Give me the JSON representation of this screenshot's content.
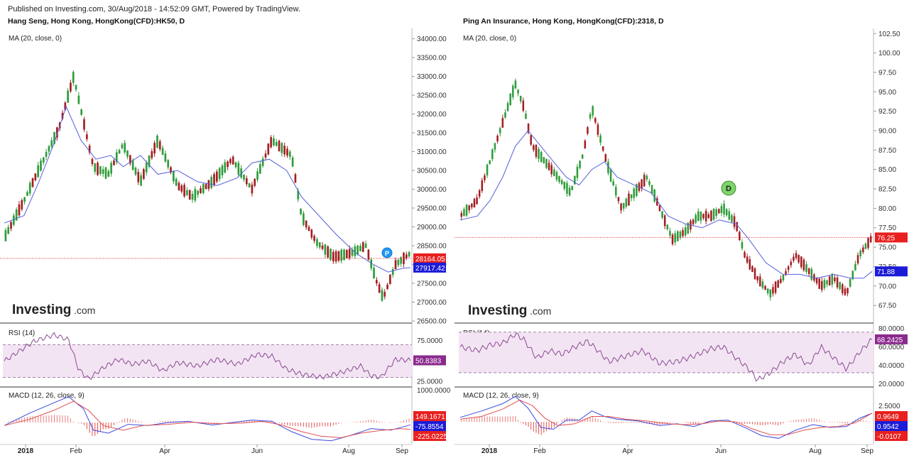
{
  "header": {
    "published": "Published on Investing.com, 30/Aug/2018 - 14:52:09 GMT, Powered by TradingView."
  },
  "colors": {
    "up": "#2e9c3a",
    "down": "#a31e22",
    "ma": "#5560d8",
    "rsi": "#8a4a93",
    "rsi_band": "#f3e4f3",
    "macd": "#3a49e0",
    "signal": "#e05050",
    "hist_pos": "#e87a7a",
    "price_line": "#e22b2b",
    "last_bg": "#e8201f",
    "ma_bg": "#1c1cd8",
    "rsi_bg": "#8b2a8e"
  },
  "chart_data": [
    {
      "type": "candlestick",
      "title": "Hang Seng, Hong Kong, HongKong(CFD):HK50, D",
      "ma_label": "MA (20, close, 0)",
      "x_labels": [
        "2018",
        "Feb",
        "Apr",
        "Jun",
        "Aug",
        "Sep"
      ],
      "y_ticks": [
        "34000.00",
        "33500.00",
        "33000.00",
        "32500.00",
        "32000.00",
        "31500.00",
        "31000.00",
        "30500.00",
        "30000.00",
        "29500.00",
        "29000.00",
        "28500.00",
        "28000.00",
        "27500.00",
        "27000.00",
        "26500.00"
      ],
      "ylim": [
        26500,
        34200
      ],
      "close_path": [
        [
          0,
          28700
        ],
        [
          8,
          29700
        ],
        [
          16,
          30800
        ],
        [
          22,
          31600
        ],
        [
          28,
          33000
        ],
        [
          33,
          31500
        ],
        [
          36,
          30600
        ],
        [
          42,
          30400
        ],
        [
          48,
          31200
        ],
        [
          55,
          30200
        ],
        [
          62,
          31300
        ],
        [
          70,
          30100
        ],
        [
          76,
          29800
        ],
        [
          84,
          30200
        ],
        [
          92,
          30800
        ],
        [
          100,
          30000
        ],
        [
          108,
          31300
        ],
        [
          116,
          30900
        ],
        [
          120,
          29300
        ],
        [
          126,
          28600
        ],
        [
          133,
          28200
        ],
        [
          140,
          28300
        ],
        [
          146,
          28500
        ],
        [
          150,
          27600
        ],
        [
          153,
          27100
        ],
        [
          158,
          28000
        ],
        [
          164,
          28300
        ]
      ],
      "ma_path": [
        [
          0,
          29100
        ],
        [
          8,
          29300
        ],
        [
          14,
          30200
        ],
        [
          20,
          31200
        ],
        [
          25,
          32200
        ],
        [
          31,
          31300
        ],
        [
          37,
          30800
        ],
        [
          43,
          30900
        ],
        [
          48,
          30600
        ],
        [
          55,
          30900
        ],
        [
          62,
          30400
        ],
        [
          70,
          30500
        ],
        [
          78,
          30200
        ],
        [
          86,
          30100
        ],
        [
          94,
          30300
        ],
        [
          100,
          30700
        ],
        [
          107,
          30800
        ],
        [
          114,
          30500
        ],
        [
          120,
          29800
        ],
        [
          127,
          29300
        ],
        [
          134,
          28800
        ],
        [
          142,
          28300
        ],
        [
          149,
          28000
        ],
        [
          155,
          27800
        ],
        [
          161,
          27900
        ],
        [
          164,
          27917
        ]
      ],
      "last_price": "28164.05",
      "last_price_value": 28164.05,
      "ma_value": "27917.42",
      "ma_value_num": 27917.42,
      "marker": {
        "label": "P",
        "x": 158,
        "y": 28300
      },
      "rsi": {
        "label": "RSI (14)",
        "ticks": [
          "75.0000",
          "25.0000"
        ],
        "current": "50.8383",
        "path": [
          [
            0,
            50
          ],
          [
            6,
            62
          ],
          [
            12,
            74
          ],
          [
            20,
            82
          ],
          [
            26,
            76
          ],
          [
            30,
            40
          ],
          [
            34,
            28
          ],
          [
            40,
            42
          ],
          [
            46,
            52
          ],
          [
            52,
            46
          ],
          [
            58,
            50
          ],
          [
            64,
            38
          ],
          [
            70,
            48
          ],
          [
            78,
            44
          ],
          [
            86,
            52
          ],
          [
            94,
            46
          ],
          [
            102,
            58
          ],
          [
            108,
            56
          ],
          [
            114,
            40
          ],
          [
            120,
            34
          ],
          [
            128,
            30
          ],
          [
            136,
            36
          ],
          [
            144,
            44
          ],
          [
            148,
            32
          ],
          [
            152,
            30
          ],
          [
            158,
            52
          ],
          [
            164,
            50.8
          ]
        ]
      },
      "macd": {
        "label": "MACD (12, 26, close, 9)",
        "ticks": [
          "1000.0000"
        ],
        "values": [
          "149.1671",
          "-75.8554",
          "-225.0225"
        ],
        "macd_path": [
          [
            0,
            -100
          ],
          [
            10,
            300
          ],
          [
            20,
            650
          ],
          [
            26,
            850
          ],
          [
            32,
            450
          ],
          [
            36,
            -250
          ],
          [
            42,
            -350
          ],
          [
            50,
            -60
          ],
          [
            58,
            -100
          ],
          [
            66,
            0
          ],
          [
            74,
            40
          ],
          [
            84,
            -80
          ],
          [
            92,
            0
          ],
          [
            100,
            80
          ],
          [
            108,
            40
          ],
          [
            116,
            -300
          ],
          [
            124,
            -550
          ],
          [
            132,
            -600
          ],
          [
            140,
            -420
          ],
          [
            148,
            -200
          ],
          [
            156,
            -250
          ],
          [
            164,
            -76
          ]
        ],
        "signal_path": [
          [
            0,
            -100
          ],
          [
            10,
            100
          ],
          [
            20,
            400
          ],
          [
            28,
            700
          ],
          [
            34,
            400
          ],
          [
            40,
            -100
          ],
          [
            48,
            -250
          ],
          [
            56,
            -100
          ],
          [
            66,
            -60
          ],
          [
            76,
            10
          ],
          [
            86,
            -40
          ],
          [
            96,
            -20
          ],
          [
            104,
            40
          ],
          [
            112,
            -80
          ],
          [
            120,
            -300
          ],
          [
            128,
            -450
          ],
          [
            136,
            -500
          ],
          [
            144,
            -350
          ],
          [
            152,
            -260
          ],
          [
            160,
            -200
          ],
          [
            164,
            -225
          ]
        ]
      }
    },
    {
      "type": "candlestick",
      "title": "Ping An Insurance, Hong Kong, HongKong(CFD):2318, D",
      "ma_label": "MA (20, close, 0)",
      "x_labels": [
        "2018",
        "Feb",
        "Apr",
        "Jun",
        "Aug",
        "Sep"
      ],
      "y_ticks": [
        "102.50",
        "100.00",
        "97.50",
        "95.00",
        "92.50",
        "90.00",
        "87.50",
        "85.00",
        "82.50",
        "80.00",
        "77.50",
        "75.00",
        "72.50",
        "70.00",
        "67.50"
      ],
      "ylim": [
        65.5,
        102.8
      ],
      "close_path": [
        [
          0,
          79
        ],
        [
          8,
          81
        ],
        [
          14,
          86
        ],
        [
          20,
          91
        ],
        [
          26,
          96
        ],
        [
          30,
          93
        ],
        [
          34,
          88
        ],
        [
          40,
          86
        ],
        [
          46,
          84
        ],
        [
          52,
          82
        ],
        [
          58,
          87
        ],
        [
          62,
          93
        ],
        [
          66,
          89
        ],
        [
          70,
          85
        ],
        [
          76,
          80
        ],
        [
          82,
          82
        ],
        [
          88,
          84
        ],
        [
          94,
          80
        ],
        [
          100,
          76
        ],
        [
          106,
          77
        ],
        [
          112,
          79
        ],
        [
          118,
          79
        ],
        [
          124,
          80
        ],
        [
          130,
          78
        ],
        [
          134,
          74
        ],
        [
          140,
          71
        ],
        [
          146,
          69
        ],
        [
          152,
          71
        ],
        [
          158,
          74
        ],
        [
          164,
          72
        ],
        [
          170,
          70
        ],
        [
          176,
          71
        ],
        [
          182,
          69
        ],
        [
          188,
          74
        ],
        [
          194,
          76.25
        ]
      ],
      "ma_path": [
        [
          0,
          78.5
        ],
        [
          8,
          79
        ],
        [
          14,
          81
        ],
        [
          20,
          84
        ],
        [
          26,
          88
        ],
        [
          32,
          90
        ],
        [
          38,
          88
        ],
        [
          44,
          86
        ],
        [
          50,
          84
        ],
        [
          56,
          83
        ],
        [
          62,
          85
        ],
        [
          68,
          86
        ],
        [
          74,
          84
        ],
        [
          82,
          83
        ],
        [
          90,
          82
        ],
        [
          98,
          79
        ],
        [
          106,
          78
        ],
        [
          114,
          77.5
        ],
        [
          122,
          78.5
        ],
        [
          130,
          78
        ],
        [
          136,
          76
        ],
        [
          144,
          73
        ],
        [
          152,
          71.5
        ],
        [
          160,
          71.5
        ],
        [
          168,
          71
        ],
        [
          176,
          71.5
        ],
        [
          184,
          71
        ],
        [
          190,
          71
        ],
        [
          194,
          71.88
        ]
      ],
      "last_price": "76.25",
      "last_price_value": 76.25,
      "ma_value": "71.88",
      "ma_value_num": 71.88,
      "marker": {
        "label": "D",
        "x": 120,
        "y": 82.3
      },
      "rsi": {
        "label": "RSI (14)",
        "ticks": [
          "80.0000",
          "60.0000",
          "40.0000",
          "20.0000"
        ],
        "current": "68.2425",
        "path": [
          [
            0,
            60
          ],
          [
            8,
            56
          ],
          [
            14,
            62
          ],
          [
            20,
            64
          ],
          [
            26,
            74
          ],
          [
            30,
            68
          ],
          [
            36,
            48
          ],
          [
            42,
            56
          ],
          [
            48,
            52
          ],
          [
            54,
            60
          ],
          [
            60,
            66
          ],
          [
            64,
            58
          ],
          [
            70,
            44
          ],
          [
            78,
            50
          ],
          [
            86,
            56
          ],
          [
            94,
            42
          ],
          [
            102,
            44
          ],
          [
            110,
            50
          ],
          [
            118,
            58
          ],
          [
            124,
            60
          ],
          [
            130,
            48
          ],
          [
            136,
            36
          ],
          [
            140,
            24
          ],
          [
            146,
            32
          ],
          [
            152,
            44
          ],
          [
            158,
            52
          ],
          [
            164,
            40
          ],
          [
            170,
            60
          ],
          [
            176,
            48
          ],
          [
            182,
            36
          ],
          [
            188,
            54
          ],
          [
            194,
            68.2
          ]
        ]
      },
      "macd": {
        "label": "MACD (12, 26, close, 9)",
        "ticks": [
          "2.5000"
        ],
        "values": [
          "0.9649",
          "0.9542",
          "-0.0107"
        ],
        "macd_path": [
          [
            0,
            0.5
          ],
          [
            10,
            1.2
          ],
          [
            20,
            2.0
          ],
          [
            26,
            2.8
          ],
          [
            32,
            1.5
          ],
          [
            38,
            -0.6
          ],
          [
            44,
            -0.8
          ],
          [
            50,
            0.2
          ],
          [
            56,
            0.2
          ],
          [
            62,
            1.2
          ],
          [
            68,
            0.6
          ],
          [
            74,
            0.3
          ],
          [
            84,
            0.1
          ],
          [
            94,
            -0.4
          ],
          [
            102,
            -0.2
          ],
          [
            110,
            -0.5
          ],
          [
            118,
            0.1
          ],
          [
            126,
            0.2
          ],
          [
            134,
            -0.6
          ],
          [
            142,
            -1.5
          ],
          [
            150,
            -1.8
          ],
          [
            158,
            -0.9
          ],
          [
            166,
            -0.3
          ],
          [
            174,
            -0.6
          ],
          [
            182,
            -0.5
          ],
          [
            188,
            0.4
          ],
          [
            194,
            0.95
          ]
        ],
        "signal_path": [
          [
            0,
            0.3
          ],
          [
            10,
            0.6
          ],
          [
            20,
            1.4
          ],
          [
            28,
            2.4
          ],
          [
            34,
            1.8
          ],
          [
            40,
            0.4
          ],
          [
            46,
            -0.4
          ],
          [
            54,
            -0.2
          ],
          [
            62,
            0.6
          ],
          [
            70,
            0.6
          ],
          [
            78,
            0.3
          ],
          [
            88,
            0.1
          ],
          [
            98,
            -0.2
          ],
          [
            106,
            -0.3
          ],
          [
            114,
            -0.2
          ],
          [
            122,
            0.1
          ],
          [
            130,
            0
          ],
          [
            138,
            -0.8
          ],
          [
            146,
            -1.4
          ],
          [
            154,
            -1.4
          ],
          [
            162,
            -0.9
          ],
          [
            170,
            -0.6
          ],
          [
            178,
            -0.5
          ],
          [
            186,
            -0.1
          ],
          [
            194,
            0.96
          ]
        ]
      }
    }
  ]
}
